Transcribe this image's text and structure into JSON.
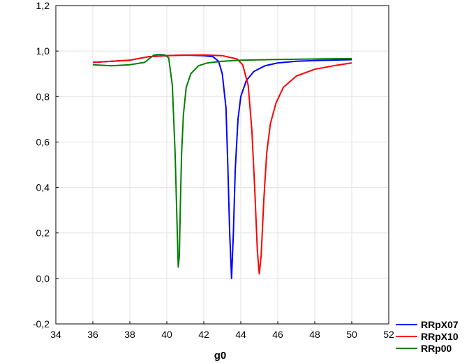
{
  "chart_data": {
    "type": "line",
    "title": "",
    "xlabel": "g0",
    "ylabel": "",
    "xlim": [
      34,
      52
    ],
    "ylim": [
      -0.2,
      1.2
    ],
    "x_ticks": [
      "34",
      "36",
      "38",
      "40",
      "42",
      "44",
      "46",
      "48",
      "50",
      "52"
    ],
    "y_ticks": [
      "-0,2",
      "0,0",
      "0,2",
      "0,4",
      "0,6",
      "0,8",
      "1,0",
      "1,2"
    ],
    "grid": true,
    "legend_position": "bottom-right",
    "series": [
      {
        "name": "RRpX07",
        "color": "#0000ff",
        "x": [
          36,
          38,
          39,
          40,
          41,
          42,
          42.5,
          42.8,
          43.0,
          43.2,
          43.3,
          43.4,
          43.5,
          43.6,
          43.7,
          43.85,
          44.0,
          44.3,
          44.7,
          45.3,
          46.0,
          47.0,
          48.0,
          50.0
        ],
        "y": [
          0.95,
          0.96,
          0.975,
          0.98,
          0.982,
          0.98,
          0.975,
          0.955,
          0.9,
          0.75,
          0.5,
          0.2,
          0.0,
          0.2,
          0.48,
          0.7,
          0.8,
          0.87,
          0.91,
          0.935,
          0.948,
          0.955,
          0.958,
          0.962
        ]
      },
      {
        "name": "RRpX10",
        "color": "#ff0000",
        "x": [
          36,
          38,
          39,
          40,
          41,
          42,
          43,
          43.8,
          44.1,
          44.4,
          44.6,
          44.75,
          44.9,
          45.0,
          45.1,
          45.25,
          45.4,
          45.6,
          45.9,
          46.3,
          47.0,
          48.0,
          49.0,
          50.0
        ],
        "y": [
          0.95,
          0.96,
          0.975,
          0.98,
          0.982,
          0.983,
          0.98,
          0.965,
          0.94,
          0.85,
          0.65,
          0.4,
          0.12,
          0.02,
          0.1,
          0.35,
          0.55,
          0.68,
          0.77,
          0.84,
          0.89,
          0.92,
          0.935,
          0.948
        ]
      },
      {
        "name": "RRp00",
        "color": "#008000",
        "x": [
          36,
          37,
          38,
          38.8,
          39.1,
          39.3,
          39.6,
          39.9,
          40.1,
          40.3,
          40.45,
          40.55,
          40.62,
          40.68,
          40.74,
          40.8,
          40.9,
          41.05,
          41.3,
          41.7,
          42.2,
          43.0,
          44.0,
          46.0,
          48.0,
          50.0
        ],
        "y": [
          0.94,
          0.935,
          0.94,
          0.95,
          0.97,
          0.982,
          0.985,
          0.983,
          0.97,
          0.85,
          0.55,
          0.25,
          0.05,
          0.1,
          0.35,
          0.55,
          0.72,
          0.84,
          0.9,
          0.935,
          0.948,
          0.955,
          0.96,
          0.963,
          0.965,
          0.967
        ]
      }
    ]
  }
}
